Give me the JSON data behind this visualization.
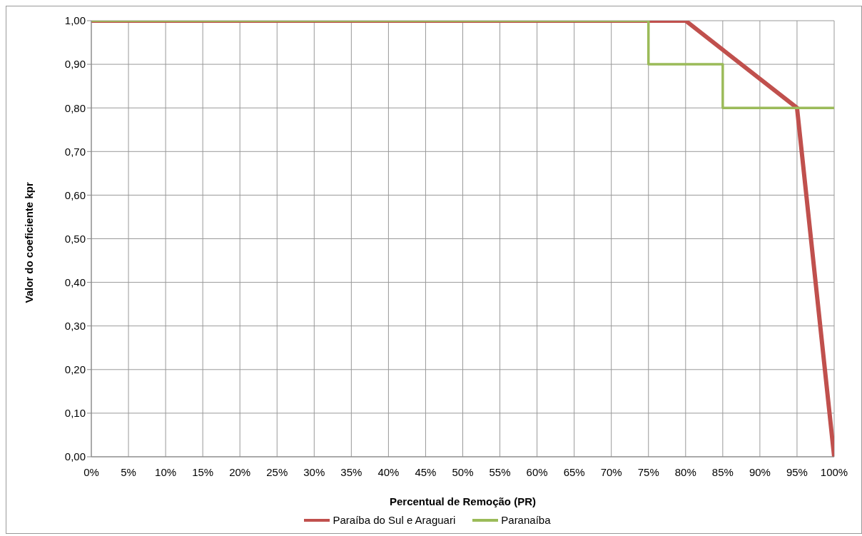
{
  "chart_data": {
    "type": "line",
    "xlabel": "Percentual de Remoção (PR)",
    "ylabel": "Valor do coeficiente kpr",
    "xlim": [
      0,
      100
    ],
    "xticks": [
      {
        "value": 0,
        "label": "0%"
      },
      {
        "value": 5,
        "label": "5%"
      },
      {
        "value": 10,
        "label": "10%"
      },
      {
        "value": 15,
        "label": "15%"
      },
      {
        "value": 20,
        "label": "20%"
      },
      {
        "value": 25,
        "label": "25%"
      },
      {
        "value": 30,
        "label": "30%"
      },
      {
        "value": 35,
        "label": "35%"
      },
      {
        "value": 40,
        "label": "40%"
      },
      {
        "value": 45,
        "label": "45%"
      },
      {
        "value": 50,
        "label": "50%"
      },
      {
        "value": 55,
        "label": "55%"
      },
      {
        "value": 60,
        "label": "60%"
      },
      {
        "value": 65,
        "label": "65%"
      },
      {
        "value": 70,
        "label": "70%"
      },
      {
        "value": 75,
        "label": "75%"
      },
      {
        "value": 80,
        "label": "80%"
      },
      {
        "value": 85,
        "label": "85%"
      },
      {
        "value": 90,
        "label": "90%"
      },
      {
        "value": 95,
        "label": "95%"
      },
      {
        "value": 100,
        "label": "100%"
      }
    ],
    "ylim": [
      0,
      1
    ],
    "yticks": [
      {
        "value": 0,
        "label": "0,00"
      },
      {
        "value": 0.1,
        "label": "0,10"
      },
      {
        "value": 0.2,
        "label": "0,20"
      },
      {
        "value": 0.3,
        "label": "0,30"
      },
      {
        "value": 0.4,
        "label": "0,40"
      },
      {
        "value": 0.5,
        "label": "0,50"
      },
      {
        "value": 0.6,
        "label": "0,60"
      },
      {
        "value": 0.7,
        "label": "0,70"
      },
      {
        "value": 0.8,
        "label": "0,80"
      },
      {
        "value": 0.9,
        "label": "0,90"
      },
      {
        "value": 1,
        "label": "1,00"
      }
    ],
    "grid": true,
    "legend": "bottom",
    "marker": "none",
    "line_style": "solid",
    "series": [
      {
        "name": "Paraíba do Sul e Araguari",
        "color": "#c0504d",
        "x": [
          0,
          80,
          95,
          100
        ],
        "values": [
          1,
          1,
          0.8,
          0
        ]
      },
      {
        "name": "Paranaíba",
        "color": "#9bbb59",
        "x": [
          0,
          75,
          75,
          85,
          85,
          100
        ],
        "values": [
          1,
          1,
          0.9,
          0.9,
          0.8,
          0.8
        ]
      }
    ]
  }
}
